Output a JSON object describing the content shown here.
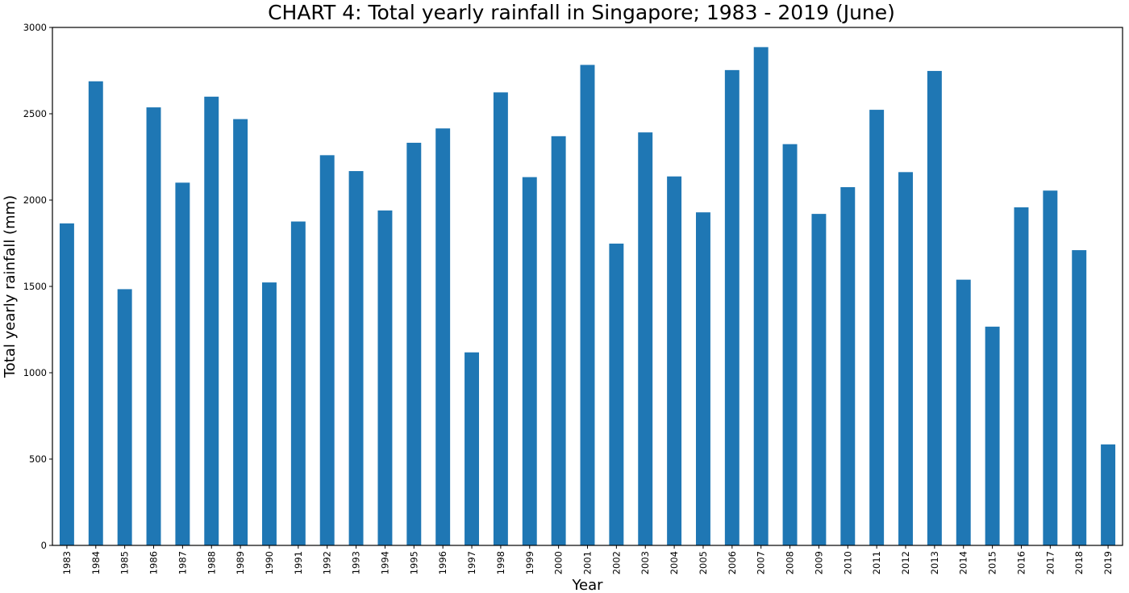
{
  "chart_data": {
    "type": "bar",
    "title": "CHART 4: Total yearly rainfall in Singapore; 1983 - 2019 (June)",
    "xlabel": "Year",
    "ylabel": "Total yearly rainfall (mm)",
    "ylim": [
      0,
      3000
    ],
    "yticks": [
      "0",
      "500",
      "1000",
      "1500",
      "2000",
      "2500",
      "3000"
    ],
    "grid": false,
    "legend": "none",
    "bar_color": "#1f77b4",
    "categories": [
      "1983",
      "1984",
      "1985",
      "1986",
      "1987",
      "1988",
      "1989",
      "1990",
      "1991",
      "1992",
      "1993",
      "1994",
      "1995",
      "1996",
      "1997",
      "1998",
      "1999",
      "2000",
      "2001",
      "2002",
      "2003",
      "2004",
      "2005",
      "2006",
      "2007",
      "2008",
      "2009",
      "2010",
      "2011",
      "2012",
      "2013",
      "2014",
      "2015",
      "2016",
      "2017",
      "2018",
      "2019"
    ],
    "values": [
      1865,
      2688,
      1484,
      2537,
      2101,
      2599,
      2469,
      1523,
      1876,
      2260,
      2168,
      1940,
      2332,
      2415,
      1118,
      2624,
      2133,
      2370,
      2783,
      1748,
      2392,
      2137,
      1929,
      2753,
      2886,
      2324,
      1920,
      2075,
      2523,
      2162,
      2748,
      1539,
      1267,
      1958,
      2055,
      1710,
      585
    ]
  }
}
